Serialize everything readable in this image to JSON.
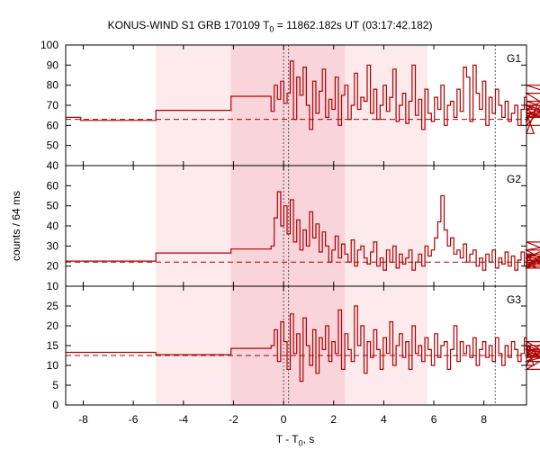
{
  "chart_data": {
    "type": "line",
    "title_prefix": "KONUS-WIND S1 GRB 170109 T",
    "title_sub": "0",
    "title_suffix": " = 11862.182s UT (03:17:42.182)",
    "xlabel_prefix": "T - T",
    "xlabel_sub": "0",
    "xlabel_suffix": ", s",
    "ylabel": "counts / 64 ms",
    "xlim": [
      -8.7,
      9.7
    ],
    "x_ticks": [
      -8,
      -6,
      -4,
      -2,
      0,
      2,
      4,
      6,
      8
    ],
    "shaded_intervals": [
      {
        "from": -5.1,
        "to": 5.75,
        "shade": "light"
      },
      {
        "from": -2.1,
        "to": 2.45,
        "shade": "dark"
      }
    ],
    "vlines_dotted": [
      0.0,
      0.2,
      8.45
    ],
    "color": "#b00000",
    "panels": [
      {
        "name": "G1",
        "ylim": [
          40,
          100
        ],
        "y_ticks": [
          40,
          50,
          60,
          70,
          80,
          90,
          100
        ],
        "background": 63,
        "steps": [
          {
            "x0": -8.7,
            "x1": -8.1,
            "y": 64
          },
          {
            "x0": -8.1,
            "x1": -5.1,
            "y": 62.5
          },
          {
            "x0": -5.1,
            "x1": -2.1,
            "y": 67.5
          },
          {
            "x0": -2.1,
            "x1": -0.5,
            "y": 74.5
          }
        ],
        "fine": {
          "x_start": -0.5,
          "dt": 0.128,
          "values": [
            67,
            80,
            73,
            82,
            71,
            76,
            92,
            63,
            84,
            75,
            89,
            70,
            58,
            82,
            66,
            77,
            88,
            64,
            73,
            68,
            84,
            60,
            75,
            80,
            63,
            70,
            86,
            68,
            74,
            72,
            90,
            66,
            78,
            63,
            70,
            80,
            67,
            74,
            88,
            62,
            70,
            76,
            61,
            72,
            90,
            65,
            73,
            58,
            78,
            66,
            62,
            74,
            68,
            80,
            60,
            70,
            72,
            64,
            78,
            67,
            89,
            84,
            62,
            90,
            76,
            68,
            82,
            60,
            74,
            66,
            78,
            70,
            64,
            72,
            62,
            66,
            70,
            60,
            68,
            74,
            62,
            66,
            56,
            70,
            66,
            64,
            72,
            68,
            60,
            76,
            66,
            70,
            64,
            68,
            80,
            72
          ]
        }
      },
      {
        "name": "G2",
        "ylim": [
          10,
          70
        ],
        "y_ticks": [
          10,
          20,
          30,
          40,
          50,
          60
        ],
        "background": 22,
        "steps": [
          {
            "x0": -8.7,
            "x1": -5.1,
            "y": 22.5
          },
          {
            "x0": -5.1,
            "x1": -2.1,
            "y": 26.5
          },
          {
            "x0": -2.1,
            "x1": -0.5,
            "y": 28.5
          }
        ],
        "fine": {
          "x_start": -0.5,
          "dt": 0.128,
          "values": [
            30,
            44,
            57,
            40,
            50,
            36,
            53,
            32,
            43,
            28,
            38,
            30,
            47,
            34,
            41,
            27,
            37,
            30,
            22,
            28,
            35,
            24,
            31,
            26,
            22,
            33,
            20,
            28,
            30,
            24,
            21,
            27,
            32,
            20,
            24,
            18,
            28,
            22,
            30,
            19,
            26,
            21,
            24,
            28,
            18,
            22,
            26,
            20,
            30,
            25,
            28,
            34,
            42,
            55,
            38,
            30,
            34,
            26,
            28,
            24,
            31,
            22,
            26,
            28,
            20,
            24,
            18,
            26,
            22,
            28,
            19,
            24,
            21,
            27,
            20,
            25,
            18,
            23,
            27,
            20,
            24,
            26,
            21,
            19,
            24,
            28,
            22,
            20,
            26,
            23,
            21,
            25,
            19,
            28,
            32,
            22
          ]
        }
      },
      {
        "name": "G3",
        "ylim": [
          0,
          30
        ],
        "y_ticks": [
          0,
          5,
          10,
          15,
          20,
          25
        ],
        "background": 12.5,
        "steps": [
          {
            "x0": -8.7,
            "x1": -5.1,
            "y": 13.3
          },
          {
            "x0": -5.1,
            "x1": -2.1,
            "y": 12.7
          },
          {
            "x0": -2.1,
            "x1": -0.5,
            "y": 14.3
          }
        ],
        "fine": {
          "x_start": -0.5,
          "dt": 0.128,
          "values": [
            15,
            19,
            11,
            21,
            16,
            9,
            23,
            13,
            18,
            6,
            22,
            15,
            10,
            19,
            8,
            17,
            14,
            20,
            11,
            16,
            13,
            24,
            9,
            18,
            14,
            11,
            25,
            15,
            20,
            8,
            16,
            12,
            19,
            14,
            9,
            17,
            13,
            21,
            10,
            15,
            18,
            12,
            16,
            9,
            20,
            13,
            15,
            11,
            17,
            14,
            10,
            18,
            12,
            15,
            16,
            9,
            14,
            20,
            11,
            16,
            13,
            15,
            12,
            17,
            10,
            14,
            16,
            12,
            15,
            11,
            17,
            13,
            10,
            15,
            12,
            16,
            14,
            11,
            13,
            17,
            12,
            15,
            10,
            14,
            12,
            16,
            13,
            11,
            15,
            9,
            14,
            12,
            15,
            11,
            14,
            12
          ]
        }
      }
    ]
  }
}
